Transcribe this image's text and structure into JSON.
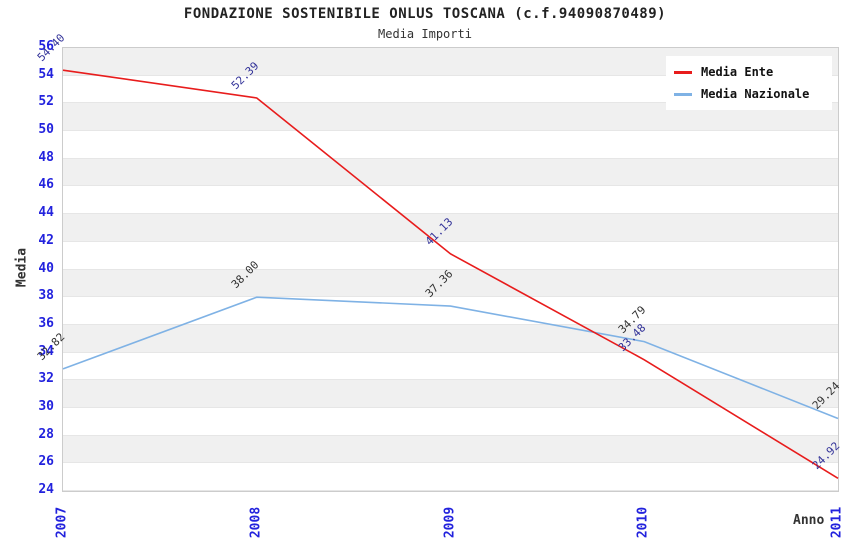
{
  "header": {
    "title": "FONDAZIONE SOSTENIBILE ONLUS TOSCANA (c.f.94090870489)",
    "subtitle": "Media Importi"
  },
  "chart_data": {
    "type": "line",
    "title": "FONDAZIONE SOSTENIBILE ONLUS TOSCANA (c.f.94090870489)",
    "subtitle": "Media Importi",
    "xlabel": "Anno",
    "ylabel": "Media",
    "categories": [
      "2007",
      "2008",
      "2009",
      "2010",
      "2011"
    ],
    "series": [
      {
        "name": "Media Nazionale",
        "color": "#7fb2e5",
        "label_color": "#333333",
        "values": [
          32.82,
          38.0,
          37.36,
          34.79,
          29.24
        ]
      },
      {
        "name": "Media Ente",
        "color": "#e81c1c",
        "label_color": "#333399",
        "values": [
          54.4,
          52.39,
          41.13,
          33.48,
          24.92
        ]
      }
    ],
    "ylim": [
      24,
      56
    ],
    "ytick_step": 2,
    "y_tick_labels": [
      "56",
      "54",
      "52",
      "50",
      "48",
      "46",
      "44",
      "42",
      "40",
      "38",
      "36",
      "34",
      "32",
      "30",
      "28",
      "26",
      "24"
    ],
    "grid": "horizontal-bands",
    "legend_position": "top-right",
    "style": {
      "band_color": "#f0f0f0",
      "grid_color": "#e6e6e6",
      "axis_border_color": "#cccccc",
      "tick_label_color": "#2222dd",
      "axis_title_color": "#333333",
      "background": "#ffffff"
    }
  }
}
